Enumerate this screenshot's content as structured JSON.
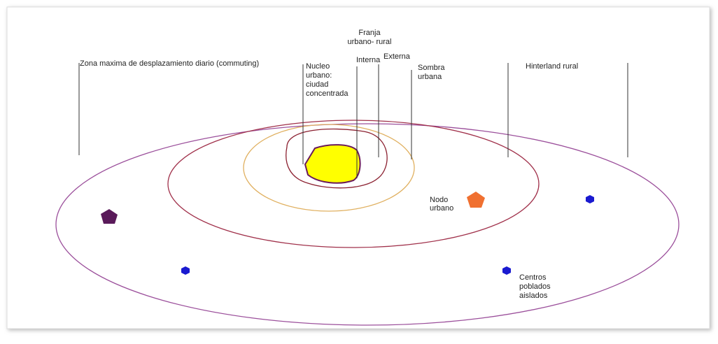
{
  "labels": {
    "franja": [
      "Franja",
      "urbano- rural"
    ],
    "zona": "Zona maxima de desplazamiento diario (commuting)",
    "nucleo": [
      "Nucleo",
      "urbano:",
      "ciudad",
      "concentrada"
    ],
    "interna": "Interna",
    "externa": "Externa",
    "sombra": [
      "Sombra",
      "urbana"
    ],
    "hinterland": "Hinterland rural",
    "nodo": [
      "Nodo",
      "urbano"
    ],
    "centros": [
      "Centros",
      "poblados",
      "aislados"
    ]
  }
}
